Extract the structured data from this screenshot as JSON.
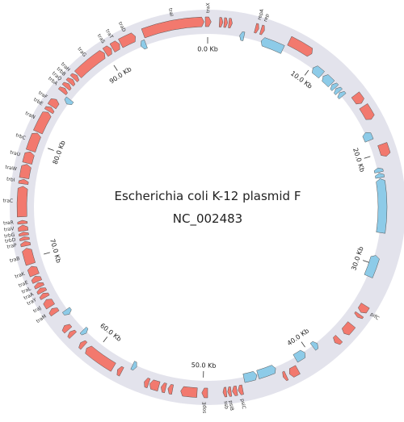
{
  "title": "Escherichia coli K-12 plasmid F",
  "accession": "NC_002483",
  "colors": {
    "track": "#e3e3ec",
    "forward": "#f2796e",
    "reverse": "#8dcbe8",
    "outline": "#555555",
    "tick": "#333333"
  },
  "chart_data": {
    "type": "circular-genome-map",
    "genome_length_kb": 99.2,
    "ticks": [
      {
        "kb": 0,
        "label": "0.0 Kb"
      },
      {
        "kb": 10,
        "label": "10.0 Kb"
      },
      {
        "kb": 20,
        "label": "20.0 Kb"
      },
      {
        "kb": 30,
        "label": "30.0 Kb"
      },
      {
        "kb": 40,
        "label": "40.0 Kb"
      },
      {
        "kb": 50,
        "label": "50.0 Kb"
      },
      {
        "kb": 60,
        "label": "60.0 Kb"
      },
      {
        "kb": 70,
        "label": "70.0 Kb"
      },
      {
        "kb": 80,
        "label": "80.0 Kb"
      },
      {
        "kb": 90,
        "label": "90.0 Kb"
      }
    ],
    "features": [
      {
        "start": 93.6,
        "end": 98.9,
        "strand": 1,
        "label": "traI"
      },
      {
        "start": 99.0,
        "end": 99.5,
        "strand": 1,
        "label": "traX"
      },
      {
        "start": 1.0,
        "end": 1.3,
        "strand": 1,
        "label": ""
      },
      {
        "start": 1.4,
        "end": 1.7,
        "strand": 1,
        "label": ""
      },
      {
        "start": 1.8,
        "end": 2.1,
        "strand": 1,
        "label": ""
      },
      {
        "start": 2.9,
        "end": 3.3,
        "strand": -1,
        "label": ""
      },
      {
        "start": 4.1,
        "end": 4.4,
        "strand": 1,
        "label": "repA"
      },
      {
        "start": 4.6,
        "end": 4.9,
        "strand": 1,
        "label": "rep"
      },
      {
        "start": 7.2,
        "end": 9.4,
        "strand": 1,
        "label": ""
      },
      {
        "start": 4.9,
        "end": 7.0,
        "strand": -1,
        "label": ""
      },
      {
        "start": 10.2,
        "end": 11.2,
        "strand": -1,
        "label": ""
      },
      {
        "start": 11.4,
        "end": 12.4,
        "strand": -1,
        "label": ""
      },
      {
        "start": 12.5,
        "end": 12.9,
        "strand": -1,
        "label": ""
      },
      {
        "start": 13.0,
        "end": 13.4,
        "strand": -1,
        "label": ""
      },
      {
        "start": 13.5,
        "end": 13.9,
        "strand": -1,
        "label": ""
      },
      {
        "start": 14.5,
        "end": 15.4,
        "strand": 1,
        "label": ""
      },
      {
        "start": 15.7,
        "end": 17.0,
        "strand": 1,
        "label": ""
      },
      {
        "start": 17.8,
        "end": 18.6,
        "strand": -1,
        "label": ""
      },
      {
        "start": 19.3,
        "end": 20.4,
        "strand": 1,
        "label": ""
      },
      {
        "start": 21.2,
        "end": 21.6,
        "strand": -1,
        "label": ""
      },
      {
        "start": 21.7,
        "end": 22.1,
        "strand": -1,
        "label": ""
      },
      {
        "start": 22.2,
        "end": 27.1,
        "strand": -1,
        "label": ""
      },
      {
        "start": 29.2,
        "end": 31.2,
        "strand": -1,
        "label": ""
      },
      {
        "start": 33.6,
        "end": 34.3,
        "strand": 1,
        "label": "pifC"
      },
      {
        "start": 34.5,
        "end": 34.8,
        "strand": 1,
        "label": ""
      },
      {
        "start": 35.6,
        "end": 36.6,
        "strand": 1,
        "label": ""
      },
      {
        "start": 37.2,
        "end": 37.7,
        "strand": 1,
        "label": ""
      },
      {
        "start": 38.9,
        "end": 39.4,
        "strand": -1,
        "label": ""
      },
      {
        "start": 40.3,
        "end": 41.3,
        "strand": -1,
        "label": ""
      },
      {
        "start": 41.6,
        "end": 42.4,
        "strand": 1,
        "label": ""
      },
      {
        "start": 42.7,
        "end": 43.0,
        "strand": 1,
        "label": ""
      },
      {
        "start": 43.3,
        "end": 45.0,
        "strand": -1,
        "label": ""
      },
      {
        "start": 45.1,
        "end": 46.3,
        "strand": -1,
        "label": ""
      },
      {
        "start": 46.6,
        "end": 47.0,
        "strand": 1,
        "label": "psiC"
      },
      {
        "start": 47.1,
        "end": 47.5,
        "strand": 1,
        "label": ""
      },
      {
        "start": 47.6,
        "end": 47.9,
        "strand": 1,
        "label": "psiB"
      },
      {
        "start": 48.0,
        "end": 48.3,
        "strand": 1,
        "label": "ssb"
      },
      {
        "start": 49.6,
        "end": 50.1,
        "strand": 1,
        "label": "sopE"
      },
      {
        "start": 50.5,
        "end": 51.9,
        "strand": 1,
        "label": ""
      },
      {
        "start": 52.6,
        "end": 53.0,
        "strand": 1,
        "label": ""
      },
      {
        "start": 53.2,
        "end": 53.6,
        "strand": 1,
        "label": ""
      },
      {
        "start": 53.8,
        "end": 54.6,
        "strand": 1,
        "label": ""
      },
      {
        "start": 54.7,
        "end": 55.1,
        "strand": 1,
        "label": ""
      },
      {
        "start": 56.2,
        "end": 56.6,
        "strand": -1,
        "label": ""
      },
      {
        "start": 57.2,
        "end": 57.6,
        "strand": 1,
        "label": ""
      },
      {
        "start": 58.0,
        "end": 60.8,
        "strand": 1,
        "label": ""
      },
      {
        "start": 61.1,
        "end": 61.5,
        "strand": 1,
        "label": ""
      },
      {
        "start": 61.7,
        "end": 62.1,
        "strand": -1,
        "label": ""
      },
      {
        "start": 62.4,
        "end": 62.8,
        "strand": 1,
        "label": ""
      },
      {
        "start": 63.0,
        "end": 63.5,
        "strand": 1,
        "label": ""
      },
      {
        "start": 64.0,
        "end": 64.5,
        "strand": -1,
        "label": ""
      },
      {
        "start": 64.8,
        "end": 65.3,
        "strand": 1,
        "label": "traM"
      },
      {
        "start": 65.5,
        "end": 66.2,
        "strand": 1,
        "label": "traJ"
      },
      {
        "start": 66.4,
        "end": 66.8,
        "strand": 1,
        "label": "traY"
      },
      {
        "start": 66.9,
        "end": 67.3,
        "strand": 1,
        "label": "traA"
      },
      {
        "start": 67.4,
        "end": 67.8,
        "strand": 1,
        "label": "traL"
      },
      {
        "start": 67.9,
        "end": 68.4,
        "strand": 1,
        "label": "traE"
      },
      {
        "start": 68.5,
        "end": 69.3,
        "strand": 1,
        "label": "traK"
      },
      {
        "start": 69.5,
        "end": 70.9,
        "strand": 1,
        "label": "traB"
      },
      {
        "start": 71.1,
        "end": 71.5,
        "strand": 1,
        "label": "traP"
      },
      {
        "start": 71.6,
        "end": 71.9,
        "strand": 1,
        "label": "trbD"
      },
      {
        "start": 72.0,
        "end": 72.3,
        "strand": 1,
        "label": "trbG"
      },
      {
        "start": 72.4,
        "end": 72.9,
        "strand": 1,
        "label": "traV"
      },
      {
        "start": 73.0,
        "end": 73.3,
        "strand": 1,
        "label": "traR"
      },
      {
        "start": 73.6,
        "end": 76.2,
        "strand": 1,
        "label": "traC"
      },
      {
        "start": 76.4,
        "end": 76.8,
        "strand": 1,
        "label": "trbI"
      },
      {
        "start": 76.9,
        "end": 78.1,
        "strand": 1,
        "label": "traW"
      },
      {
        "start": 78.2,
        "end": 79.2,
        "strand": 1,
        "label": "traU"
      },
      {
        "start": 79.3,
        "end": 80.9,
        "strand": 1,
        "label": "trbC"
      },
      {
        "start": 81.0,
        "end": 82.9,
        "strand": 1,
        "label": "traN"
      },
      {
        "start": 83.0,
        "end": 83.4,
        "strand": 1,
        "label": "trbE"
      },
      {
        "start": 83.5,
        "end": 84.2,
        "strand": 1,
        "label": "traF"
      },
      {
        "start": 84.4,
        "end": 84.9,
        "strand": -1,
        "label": ""
      },
      {
        "start": 85.0,
        "end": 85.4,
        "strand": 1,
        "label": "trbA"
      },
      {
        "start": 85.5,
        "end": 85.9,
        "strand": 1,
        "label": "traQ"
      },
      {
        "start": 86.0,
        "end": 86.4,
        "strand": 1,
        "label": "trbB"
      },
      {
        "start": 86.5,
        "end": 86.9,
        "strand": 1,
        "label": "traH"
      },
      {
        "start": 87.0,
        "end": 89.9,
        "strand": 1,
        "label": "traG"
      },
      {
        "start": 90.0,
        "end": 90.6,
        "strand": 1,
        "label": "traS"
      },
      {
        "start": 90.7,
        "end": 91.4,
        "strand": 1,
        "label": "traT"
      },
      {
        "start": 91.5,
        "end": 92.9,
        "strand": 1,
        "label": "traD"
      },
      {
        "start": 93.0,
        "end": 93.5,
        "strand": -1,
        "label": ""
      }
    ]
  }
}
